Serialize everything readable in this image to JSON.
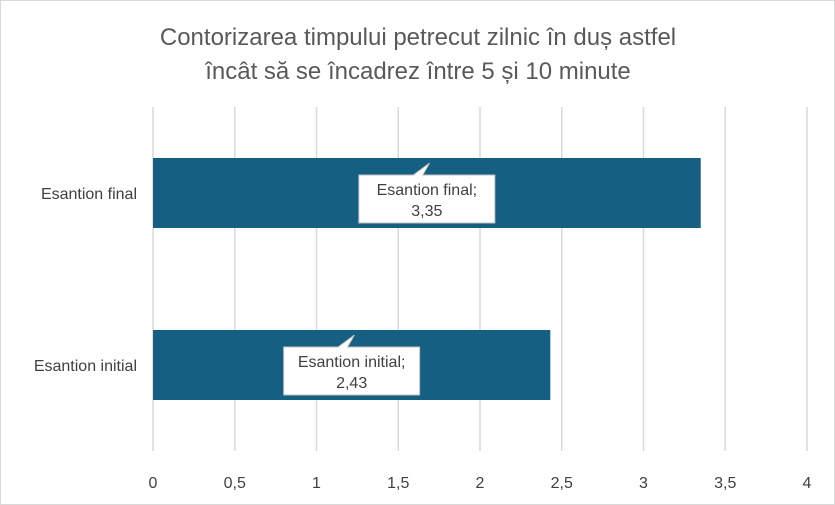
{
  "chart_data": {
    "type": "bar",
    "orientation": "horizontal",
    "title_lines": [
      "Contorizarea timpului petrecut zilnic în duș astfel",
      "încât să se încadrez între 5 și 10 minute"
    ],
    "categories": [
      "Esantion final",
      "Esantion initial"
    ],
    "values": [
      3.35,
      2.43
    ],
    "value_labels": [
      "3,35",
      "2,43"
    ],
    "xlim": [
      0,
      4
    ],
    "x_ticks": [
      0,
      0.5,
      1,
      1.5,
      2,
      2.5,
      3,
      3.5,
      4
    ],
    "x_tick_labels": [
      "0",
      "0,5",
      "1",
      "1,5",
      "2",
      "2,5",
      "3",
      "3,5",
      "4"
    ],
    "grid": true,
    "legend": "none",
    "bar_color": "#156082",
    "grid_color": "#d9d9d9"
  }
}
